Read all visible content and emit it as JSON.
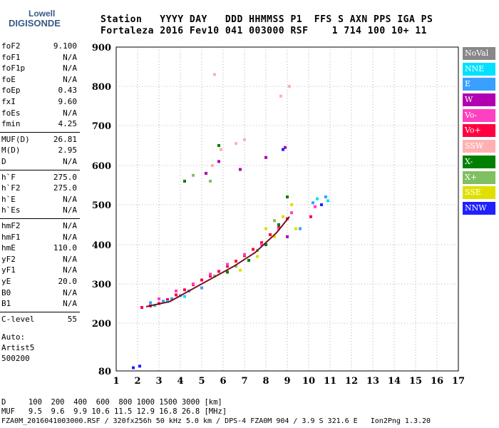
{
  "header": {
    "logo_top": "Lowell",
    "logo_bottom": "DIGISONDE",
    "labels_line": "Station   YYYY DAY   DDD HHMMSS P1  FFS S AXN PPS IGA PS",
    "values_line": "Fortaleza 2016 Fev10 041 003000 RSF    1 714 100 10+ 11"
  },
  "params": [
    {
      "label": "foF2",
      "value": "9.100"
    },
    {
      "label": "foF1",
      "value": "N/A"
    },
    {
      "label": "foF1p",
      "value": "N/A"
    },
    {
      "label": "foE",
      "value": "N/A"
    },
    {
      "label": "foEp",
      "value": "0.43"
    },
    {
      "label": "fxI",
      "value": "9.60"
    },
    {
      "label": "foEs",
      "value": "N/A"
    },
    {
      "label": "fmin",
      "value": "4.25"
    },
    {
      "label": "MUF(D)",
      "value": "26.81"
    },
    {
      "label": "M(D)",
      "value": "2.95"
    },
    {
      "label": "D",
      "value": "N/A"
    },
    {
      "label": "h`F",
      "value": "275.0"
    },
    {
      "label": "h`F2",
      "value": "275.0"
    },
    {
      "label": "h`E",
      "value": "N/A"
    },
    {
      "label": "h`Es",
      "value": "N/A"
    },
    {
      "label": "hmF2",
      "value": "N/A"
    },
    {
      "label": "hmF1",
      "value": "N/A"
    },
    {
      "label": "hmE",
      "value": "110.0"
    },
    {
      "label": "yF2",
      "value": "N/A"
    },
    {
      "label": "yF1",
      "value": "N/A"
    },
    {
      "label": "yE",
      "value": "20.0"
    },
    {
      "label": "B0",
      "value": "N/A"
    },
    {
      "label": "B1",
      "value": "N/A"
    },
    {
      "label": "C-level",
      "value": "55"
    }
  ],
  "notes": [
    "Auto:",
    "Artist5",
    "500200"
  ],
  "legend": [
    {
      "label": "NoVal",
      "color": "#888888"
    },
    {
      "label": "NNE",
      "color": "#00e0ff"
    },
    {
      "label": "E",
      "color": "#3aa0ff"
    },
    {
      "label": "W",
      "color": "#b000b0"
    },
    {
      "label": "Vo-",
      "color": "#ff40c0"
    },
    {
      "label": "Vo+",
      "color": "#ff0040"
    },
    {
      "label": "SSW",
      "color": "#ffb0b0"
    },
    {
      "label": "X-",
      "color": "#008000"
    },
    {
      "label": "X+",
      "color": "#80c060"
    },
    {
      "label": "SSE",
      "color": "#e0e000"
    },
    {
      "label": "NNW",
      "color": "#2020ff"
    }
  ],
  "footer": {
    "d_line": "D     100  200  400  600  800 1000 1500 3000 [km]",
    "muf_line": "MUF   9.5  9.6  9.9 10.6 11.5 12.9 16.8 26.8 [MHz]",
    "file_line": "FZA0M_2016041003000.RSF / 320fx256h 50 kHz 5.0 km / DPS-4 FZA0M 904 / 3.9 S 321.6 E   Ion2Png 1.3.20"
  },
  "chart_data": {
    "type": "scatter",
    "xlim": [
      1,
      17
    ],
    "ylim": [
      80,
      900
    ],
    "x_ticks": [
      "1",
      "2",
      "3",
      "4",
      "5",
      "6",
      "7",
      "8",
      "9",
      "10",
      "11",
      "12",
      "13",
      "14",
      "15",
      "16",
      "17"
    ],
    "y_ticks": [
      "80",
      "200",
      "300",
      "400",
      "500",
      "600",
      "700",
      "800",
      "900"
    ],
    "grid": true,
    "series": [
      {
        "name": "Vo+",
        "points": [
          [
            2.2,
            240
          ],
          [
            2.6,
            244
          ],
          [
            3.0,
            250
          ],
          [
            3.4,
            260
          ],
          [
            3.8,
            272
          ],
          [
            4.2,
            285
          ],
          [
            4.6,
            298
          ],
          [
            5.0,
            310
          ],
          [
            5.4,
            320
          ],
          [
            5.8,
            332
          ],
          [
            6.2,
            345
          ],
          [
            6.6,
            358
          ],
          [
            7.0,
            372
          ],
          [
            7.4,
            388
          ],
          [
            7.8,
            405
          ],
          [
            8.2,
            425
          ],
          [
            8.6,
            445
          ],
          [
            9.0,
            465
          ],
          [
            10.1,
            470
          ]
        ]
      },
      {
        "name": "Vo-",
        "points": [
          [
            3.0,
            262
          ],
          [
            3.8,
            282
          ],
          [
            4.6,
            300
          ],
          [
            5.4,
            325
          ],
          [
            6.2,
            350
          ],
          [
            7.0,
            375
          ],
          [
            7.8,
            400
          ],
          [
            8.6,
            440
          ],
          [
            9.2,
            480
          ],
          [
            10.3,
            495
          ]
        ]
      },
      {
        "name": "E",
        "points": [
          [
            2.6,
            252
          ],
          [
            3.2,
            256
          ],
          [
            3.6,
            262
          ],
          [
            4.0,
            270
          ],
          [
            4.4,
            282
          ],
          [
            5.0,
            290
          ],
          [
            9.6,
            440
          ],
          [
            10.2,
            505
          ],
          [
            10.8,
            520
          ]
        ]
      },
      {
        "name": "NNE",
        "points": [
          [
            2.8,
            245
          ],
          [
            3.4,
            255
          ],
          [
            4.2,
            268
          ],
          [
            10.4,
            515
          ],
          [
            10.9,
            510
          ]
        ]
      },
      {
        "name": "SSE",
        "points": [
          [
            6.8,
            335
          ],
          [
            7.6,
            370
          ],
          [
            8.4,
            420
          ],
          [
            8.8,
            470
          ],
          [
            9.2,
            500
          ],
          [
            9.4,
            440
          ],
          [
            8.0,
            440
          ]
        ]
      },
      {
        "name": "X-",
        "points": [
          [
            6.2,
            330
          ],
          [
            7.2,
            360
          ],
          [
            8.0,
            400
          ],
          [
            8.6,
            450
          ],
          [
            9.0,
            520
          ],
          [
            4.2,
            560
          ],
          [
            5.8,
            650
          ]
        ]
      },
      {
        "name": "X+",
        "points": [
          [
            5.6,
            320
          ],
          [
            6.6,
            345
          ],
          [
            7.6,
            385
          ],
          [
            8.4,
            460
          ],
          [
            4.6,
            575
          ],
          [
            5.4,
            560
          ]
        ]
      },
      {
        "name": "SSW",
        "points": [
          [
            5.5,
            600
          ],
          [
            5.9,
            640
          ],
          [
            6.6,
            655
          ],
          [
            7.0,
            665
          ],
          [
            8.7,
            775
          ],
          [
            9.1,
            800
          ],
          [
            5.6,
            830
          ]
        ]
      },
      {
        "name": "W",
        "points": [
          [
            5.2,
            580
          ],
          [
            5.8,
            610
          ],
          [
            8.0,
            620
          ],
          [
            8.9,
            645
          ],
          [
            6.8,
            590
          ],
          [
            9.0,
            420
          ]
        ]
      },
      {
        "name": "NNW",
        "points": [
          [
            1.8,
            88
          ],
          [
            2.1,
            92
          ],
          [
            8.8,
            640
          ],
          [
            10.6,
            500
          ]
        ]
      },
      {
        "name": "trace",
        "points": [
          [
            2.4,
            242
          ],
          [
            3.5,
            255
          ],
          [
            4.5,
            285
          ],
          [
            5.5,
            315
          ],
          [
            6.5,
            345
          ],
          [
            7.5,
            380
          ],
          [
            8.5,
            430
          ],
          [
            9.1,
            470
          ]
        ]
      }
    ]
  }
}
